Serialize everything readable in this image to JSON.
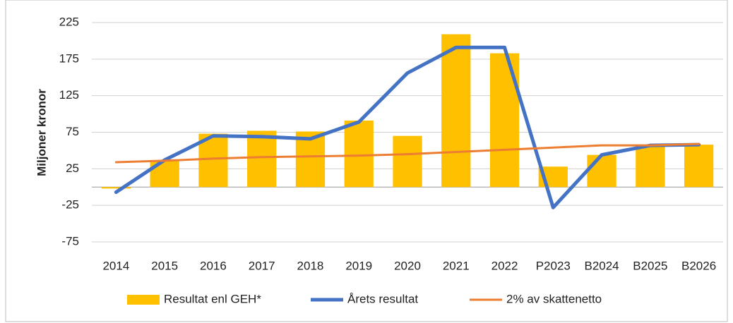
{
  "chart_data": {
    "type": "bar_line",
    "y_label": "Miljoner kronor",
    "categories": [
      "2014",
      "2015",
      "2016",
      "2017",
      "2018",
      "2019",
      "2020",
      "2021",
      "2022",
      "P2023",
      "B2024",
      "B2025",
      "B2026"
    ],
    "series": [
      {
        "name": "Resultat enl GEH*",
        "type": "bar",
        "color": "#ffc000",
        "values": [
          -2,
          37,
          73,
          77,
          76,
          91,
          70,
          209,
          183,
          28,
          44,
          58,
          58
        ]
      },
      {
        "name": "Årets resultat",
        "type": "line",
        "color": "#4472c4",
        "values": [
          -7,
          37,
          70,
          69,
          66,
          89,
          156,
          191,
          191,
          -28,
          44,
          57,
          58
        ]
      },
      {
        "name": "2% av skattenetto",
        "type": "line",
        "color": "#ed7d31",
        "values": [
          34,
          36,
          39,
          41,
          42,
          43,
          45,
          48,
          51,
          54,
          57,
          57,
          59
        ]
      }
    ],
    "ylim": [
      -75,
      225
    ],
    "yticks": [
      -75,
      -25,
      25,
      75,
      125,
      175,
      225
    ],
    "grid": true,
    "legend": "bottom"
  }
}
